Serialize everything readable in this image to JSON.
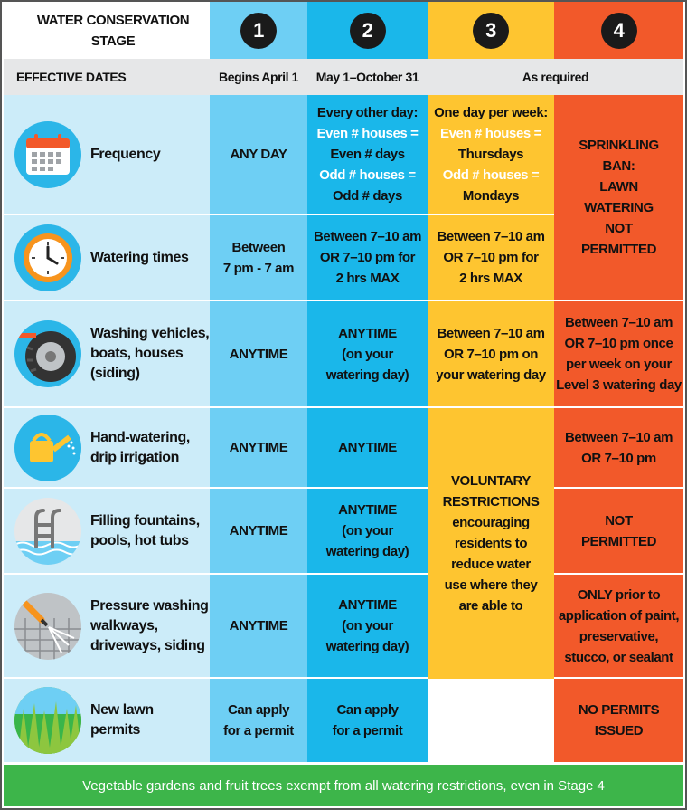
{
  "header": {
    "title": "WATER CONSERVATION STAGE",
    "stages": [
      "1",
      "2",
      "3",
      "4"
    ]
  },
  "effective": {
    "label": "EFFECTIVE DATES",
    "stage1": "Begins April 1",
    "stage2": "May 1–October 31",
    "stage34": "As required"
  },
  "rows": {
    "frequency": {
      "label": "Frequency",
      "s1": "ANY DAY",
      "s2": [
        "Every other day:",
        "Even # houses =",
        "Even # days",
        "Odd # houses =",
        "Odd # days"
      ],
      "s3": [
        "One day per week:",
        "Even # houses =",
        "Thursdays",
        "Odd # houses =",
        "Mondays"
      ]
    },
    "watering_times": {
      "label": "Watering times",
      "s1": [
        "Between",
        "7 pm - 7 am"
      ],
      "s2": [
        "Between 7–10 am",
        "OR 7–10 pm for",
        "2 hrs MAX"
      ],
      "s3": [
        "Between 7–10 am",
        "OR 7–10 pm for",
        "2 hrs MAX"
      ]
    },
    "sprinkling_ban": [
      "SPRINKLING",
      "BAN:",
      "LAWN",
      "WATERING",
      "NOT",
      "PERMITTED"
    ],
    "washing": {
      "label": [
        "Washing vehicles,",
        "boats, houses",
        "(siding)"
      ],
      "s1": "ANYTIME",
      "s2": [
        "ANYTIME",
        "(on your",
        "watering day)"
      ],
      "s3": [
        "Between 7–10 am",
        "OR 7–10 pm on",
        "your watering day"
      ],
      "s4": [
        "Between 7–10 am",
        "OR 7–10 pm once",
        "per week on your",
        "Level 3 watering day"
      ]
    },
    "hand_watering": {
      "label": [
        "Hand-watering,",
        "drip irrigation"
      ],
      "s1": "ANYTIME",
      "s2": "ANYTIME",
      "s4": [
        "Between 7–10 am",
        "OR 7–10 pm"
      ]
    },
    "fountains": {
      "label": [
        "Filling fountains,",
        "pools, hot tubs"
      ],
      "s1": "ANYTIME",
      "s2": [
        "ANYTIME",
        "(on your",
        "watering day)"
      ],
      "s4": [
        "NOT",
        "PERMITTED"
      ]
    },
    "voluntary": [
      "VOLUNTARY",
      "RESTRICTIONS",
      "encouraging",
      "residents to",
      "reduce water",
      "use where they",
      "are able to"
    ],
    "pressure": {
      "label": [
        "Pressure washing",
        "walkways,",
        "driveways, siding"
      ],
      "s1": "ANYTIME",
      "s2": [
        "ANYTIME",
        "(on your",
        "watering day)"
      ],
      "s4": [
        "ONLY prior to",
        "application of paint,",
        "preservative,",
        "stucco, or sealant"
      ]
    },
    "new_lawn": {
      "label": [
        "New lawn",
        "permits"
      ],
      "s1": [
        "Can apply",
        "for a permit"
      ],
      "s2": [
        "Can apply",
        "for a permit"
      ],
      "s4": [
        "NO PERMITS",
        "ISSUED"
      ]
    }
  },
  "footer": "Vegetable gardens and fruit trees exempt from all watering restrictions, even in Stage 4",
  "icons": [
    "calendar-icon",
    "clock-icon",
    "tire-icon",
    "watering-can-icon",
    "pool-ladder-icon",
    "pressure-washer-icon",
    "grass-icon"
  ],
  "colors": {
    "stage1": "#6ecff4",
    "stage2": "#1ab7ea",
    "stage3": "#fec530",
    "stage4": "#f2592a",
    "footer": "#3db54a"
  }
}
